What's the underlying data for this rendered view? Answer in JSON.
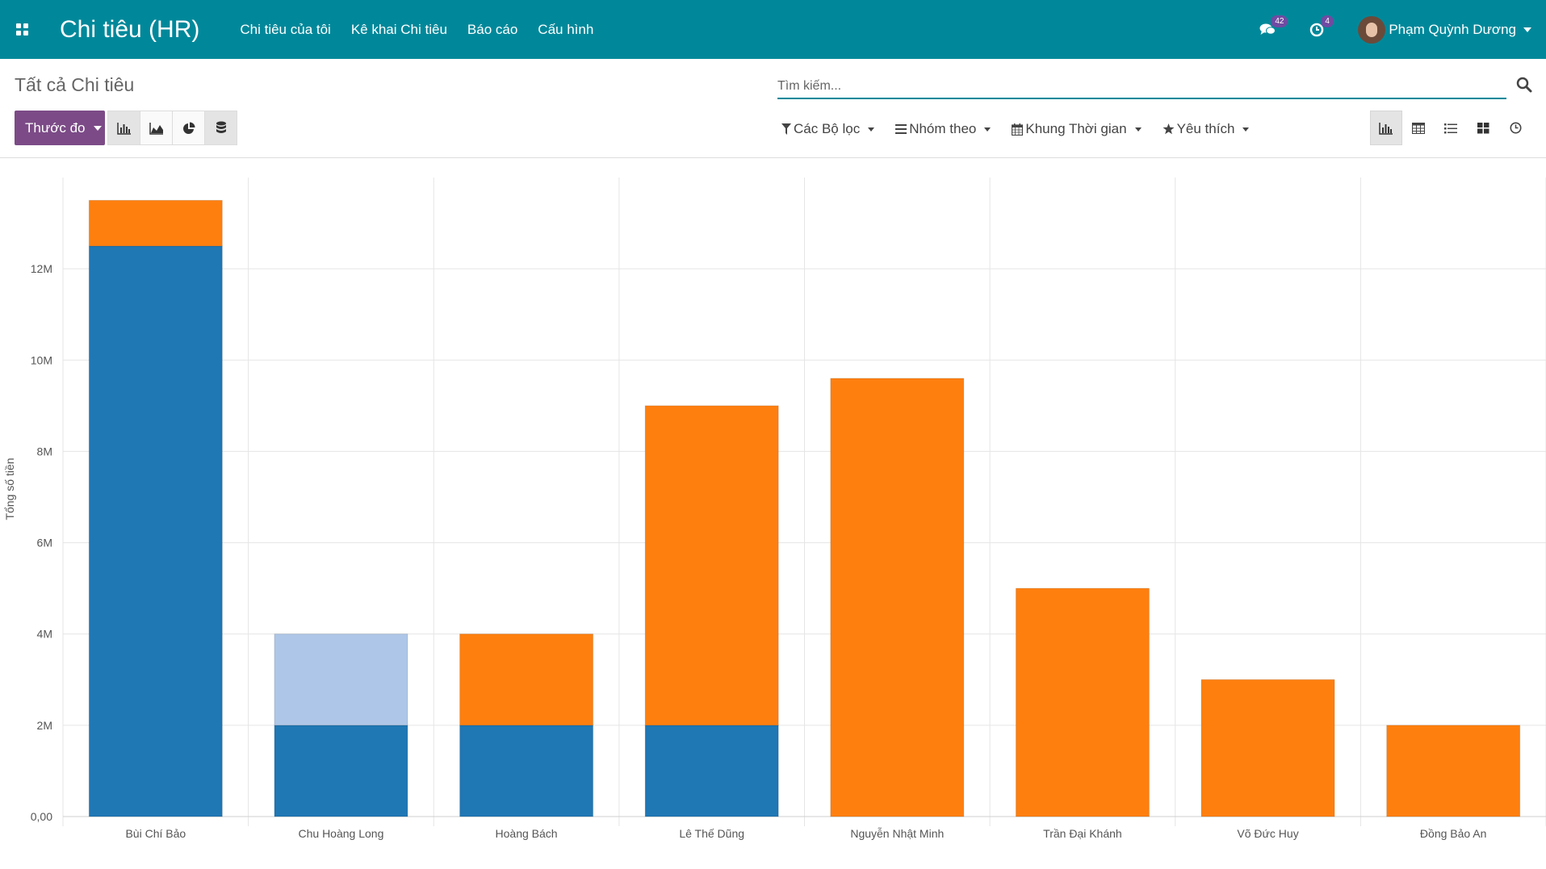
{
  "navbar": {
    "brand": "Chi tiêu (HR)",
    "menu": [
      "Chi tiêu của tôi",
      "Kê khai Chi tiêu",
      "Báo cáo",
      "Cấu hình"
    ],
    "messages_badge": "42",
    "activities_badge": "4",
    "user_name": "Phạm Quỳnh Dương"
  },
  "control": {
    "breadcrumb": "Tất cả Chi tiêu",
    "search_placeholder": "Tìm kiếm...",
    "measure_label": "Thước đo",
    "filters_label": "Các Bộ lọc",
    "groupby_label": "Nhóm theo",
    "timeframe_label": "Khung Thời gian",
    "favorites_label": "Yêu thích"
  },
  "colors": {
    "navbar": "#00889a",
    "accent": "#7c4b87",
    "series_dark_blue": "#1f77b4",
    "series_light_blue": "#aec7e8",
    "series_orange": "#ff7f0e"
  },
  "chart_data": {
    "type": "bar",
    "stacked": true,
    "ylabel": "Tổng số tiền",
    "ylim": [
      0,
      14000000
    ],
    "yticks": [
      0,
      2000000,
      4000000,
      6000000,
      8000000,
      10000000,
      12000000
    ],
    "ytick_labels": [
      "0,00",
      "2M",
      "4M",
      "6M",
      "8M",
      "10M",
      "12M"
    ],
    "grid": true,
    "legend": "none",
    "categories": [
      "Bùi Chí Bảo",
      "Chu Hoàng Long",
      "Hoàng Bách",
      "Lê Thế Dũng",
      "Nguyễn Nhật Minh",
      "Trần Đại Khánh",
      "Võ Đức Huy",
      "Đồng Bảo An"
    ],
    "series": [
      {
        "color": "#1f77b4",
        "values": [
          12500000,
          2000000,
          2000000,
          2000000,
          0,
          0,
          0,
          0
        ]
      },
      {
        "color": "#aec7e8",
        "values": [
          0,
          2000000,
          0,
          0,
          0,
          0,
          0,
          0
        ]
      },
      {
        "color": "#ff7f0e",
        "values": [
          1000000,
          0,
          2000000,
          7000000,
          9600000,
          5000000,
          3000000,
          2000000
        ]
      }
    ]
  }
}
